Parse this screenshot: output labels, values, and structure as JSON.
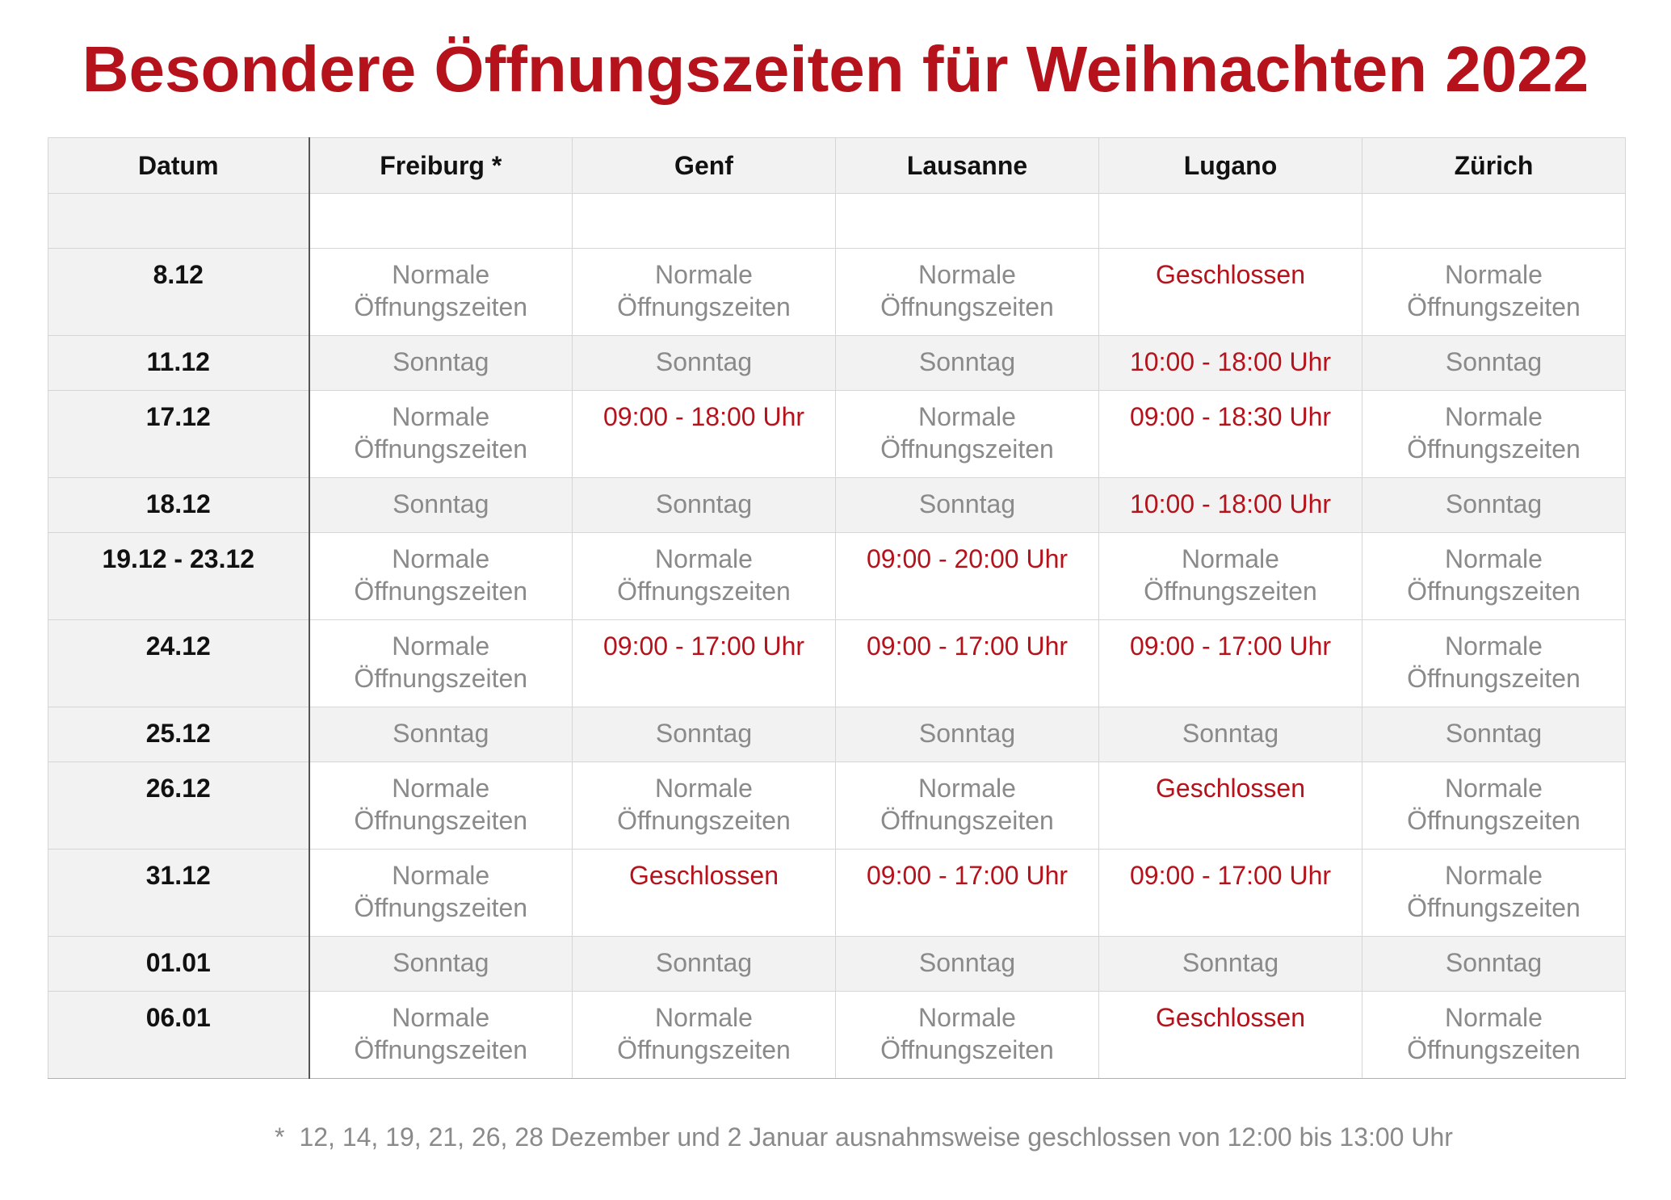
{
  "title": "Besondere Öffnungszeiten für Weihnachten 2022",
  "colors": {
    "accent": "#b5121b",
    "muted": "#8a8a8a",
    "header_bg": "#f2f2f2"
  },
  "columns": [
    "Datum",
    "Freiburg *",
    "Genf",
    "Lausanne",
    "Lugano",
    "Zürich"
  ],
  "rows": [
    {
      "date": "8.12",
      "type": "tall",
      "cells": [
        {
          "text": "Normale Öffnungszeiten",
          "highlight": false
        },
        {
          "text": "Normale Öffnungszeiten",
          "highlight": false
        },
        {
          "text": "Normale Öffnungszeiten",
          "highlight": false
        },
        {
          "text": "Geschlossen",
          "highlight": true
        },
        {
          "text": "Normale Öffnungszeiten",
          "highlight": false
        }
      ]
    },
    {
      "date": "11.12",
      "type": "sunday",
      "cells": [
        {
          "text": "Sonntag",
          "highlight": false
        },
        {
          "text": "Sonntag",
          "highlight": false
        },
        {
          "text": "Sonntag",
          "highlight": false
        },
        {
          "text": "10:00 - 18:00 Uhr",
          "highlight": true
        },
        {
          "text": "Sonntag",
          "highlight": false
        }
      ]
    },
    {
      "date": "17.12",
      "type": "tall",
      "cells": [
        {
          "text": "Normale Öffnungszeiten",
          "highlight": false
        },
        {
          "text": "09:00 - 18:00 Uhr",
          "highlight": true
        },
        {
          "text": "Normale Öffnungszeiten",
          "highlight": false
        },
        {
          "text": "09:00 - 18:30 Uhr",
          "highlight": true
        },
        {
          "text": "Normale Öffnungszeiten",
          "highlight": false
        }
      ]
    },
    {
      "date": "18.12",
      "type": "sunday",
      "cells": [
        {
          "text": "Sonntag",
          "highlight": false
        },
        {
          "text": "Sonntag",
          "highlight": false
        },
        {
          "text": "Sonntag",
          "highlight": false
        },
        {
          "text": "10:00 - 18:00 Uhr",
          "highlight": true
        },
        {
          "text": "Sonntag",
          "highlight": false
        }
      ]
    },
    {
      "date": "19.12 - 23.12",
      "type": "tall",
      "cells": [
        {
          "text": "Normale Öffnungszeiten",
          "highlight": false
        },
        {
          "text": "Normale Öffnungszeiten",
          "highlight": false
        },
        {
          "text": "09:00 - 20:00 Uhr",
          "highlight": true
        },
        {
          "text": "Normale Öffnungszeiten",
          "highlight": false
        },
        {
          "text": "Normale Öffnungszeiten",
          "highlight": false
        }
      ]
    },
    {
      "date": "24.12",
      "type": "tall",
      "cells": [
        {
          "text": "Normale Öffnungszeiten",
          "highlight": false
        },
        {
          "text": "09:00 - 17:00 Uhr",
          "highlight": true
        },
        {
          "text": "09:00 - 17:00 Uhr",
          "highlight": true
        },
        {
          "text": "09:00 - 17:00 Uhr",
          "highlight": true
        },
        {
          "text": "Normale Öffnungszeiten",
          "highlight": false
        }
      ]
    },
    {
      "date": "25.12",
      "type": "sunday",
      "cells": [
        {
          "text": "Sonntag",
          "highlight": false
        },
        {
          "text": "Sonntag",
          "highlight": false
        },
        {
          "text": "Sonntag",
          "highlight": false
        },
        {
          "text": "Sonntag",
          "highlight": false
        },
        {
          "text": "Sonntag",
          "highlight": false
        }
      ]
    },
    {
      "date": "26.12",
      "type": "tall",
      "cells": [
        {
          "text": "Normale Öffnungszeiten",
          "highlight": false
        },
        {
          "text": "Normale Öffnungszeiten",
          "highlight": false
        },
        {
          "text": "Normale Öffnungszeiten",
          "highlight": false
        },
        {
          "text": "Geschlossen",
          "highlight": true
        },
        {
          "text": "Normale Öffnungszeiten",
          "highlight": false
        }
      ]
    },
    {
      "date": "31.12",
      "type": "tall",
      "cells": [
        {
          "text": "Normale Öffnungszeiten",
          "highlight": false
        },
        {
          "text": "Geschlossen",
          "highlight": true
        },
        {
          "text": "09:00 - 17:00 Uhr",
          "highlight": true
        },
        {
          "text": "09:00 - 17:00 Uhr",
          "highlight": true
        },
        {
          "text": "Normale Öffnungszeiten",
          "highlight": false
        }
      ]
    },
    {
      "date": "01.01",
      "type": "sunday",
      "cells": [
        {
          "text": "Sonntag",
          "highlight": false
        },
        {
          "text": "Sonntag",
          "highlight": false
        },
        {
          "text": "Sonntag",
          "highlight": false
        },
        {
          "text": "Sonntag",
          "highlight": false
        },
        {
          "text": "Sonntag",
          "highlight": false
        }
      ]
    },
    {
      "date": "06.01",
      "type": "tall",
      "cells": [
        {
          "text": "Normale Öffnungszeiten",
          "highlight": false
        },
        {
          "text": "Normale Öffnungszeiten",
          "highlight": false
        },
        {
          "text": "Normale Öffnungszeiten",
          "highlight": false
        },
        {
          "text": "Geschlossen",
          "highlight": true
        },
        {
          "text": "Normale Öffnungszeiten",
          "highlight": false
        }
      ]
    }
  ],
  "footnote": {
    "marker": "*",
    "text": "12, 14, 19, 21, 26, 28 Dezember und 2 Januar ausnahmsweise geschlossen von 12:00 bis 13:00 Uhr"
  }
}
